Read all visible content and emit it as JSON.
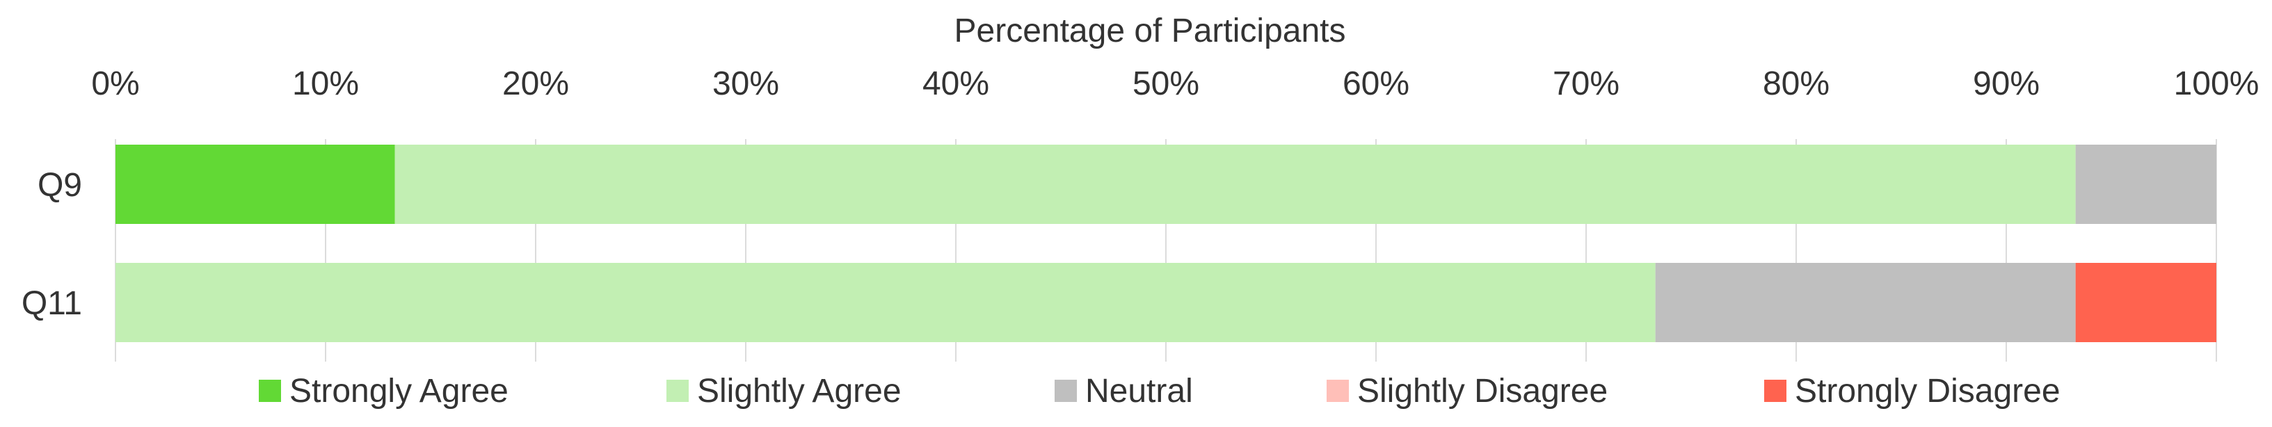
{
  "chart_data": {
    "type": "bar",
    "orientation": "horizontal",
    "stacked": true,
    "xlabel": "Percentage of Participants",
    "xlabel_position": "top",
    "xlim": [
      0,
      100
    ],
    "x_ticks": [
      "0%",
      "10%",
      "20%",
      "30%",
      "40%",
      "50%",
      "60%",
      "70%",
      "80%",
      "90%",
      "100%"
    ],
    "grid": "vertical",
    "legend_placement": "bottom",
    "categories": [
      "Q9",
      "Q11"
    ],
    "series": [
      {
        "name": "Strongly Agree",
        "color": "#62d935",
        "values": [
          13.3,
          0
        ]
      },
      {
        "name": "Slightly Agree",
        "color": "#c2efb3",
        "values": [
          80,
          73.3
        ]
      },
      {
        "name": "Neutral",
        "color": "#bfbfbf",
        "values": [
          6.7,
          20
        ]
      },
      {
        "name": "Slightly Disagree",
        "color": "#ffbfb8",
        "values": [
          0,
          0
        ]
      },
      {
        "name": "Strongly Disagree",
        "color": "#ff634f",
        "values": [
          0,
          6.7
        ]
      }
    ]
  }
}
